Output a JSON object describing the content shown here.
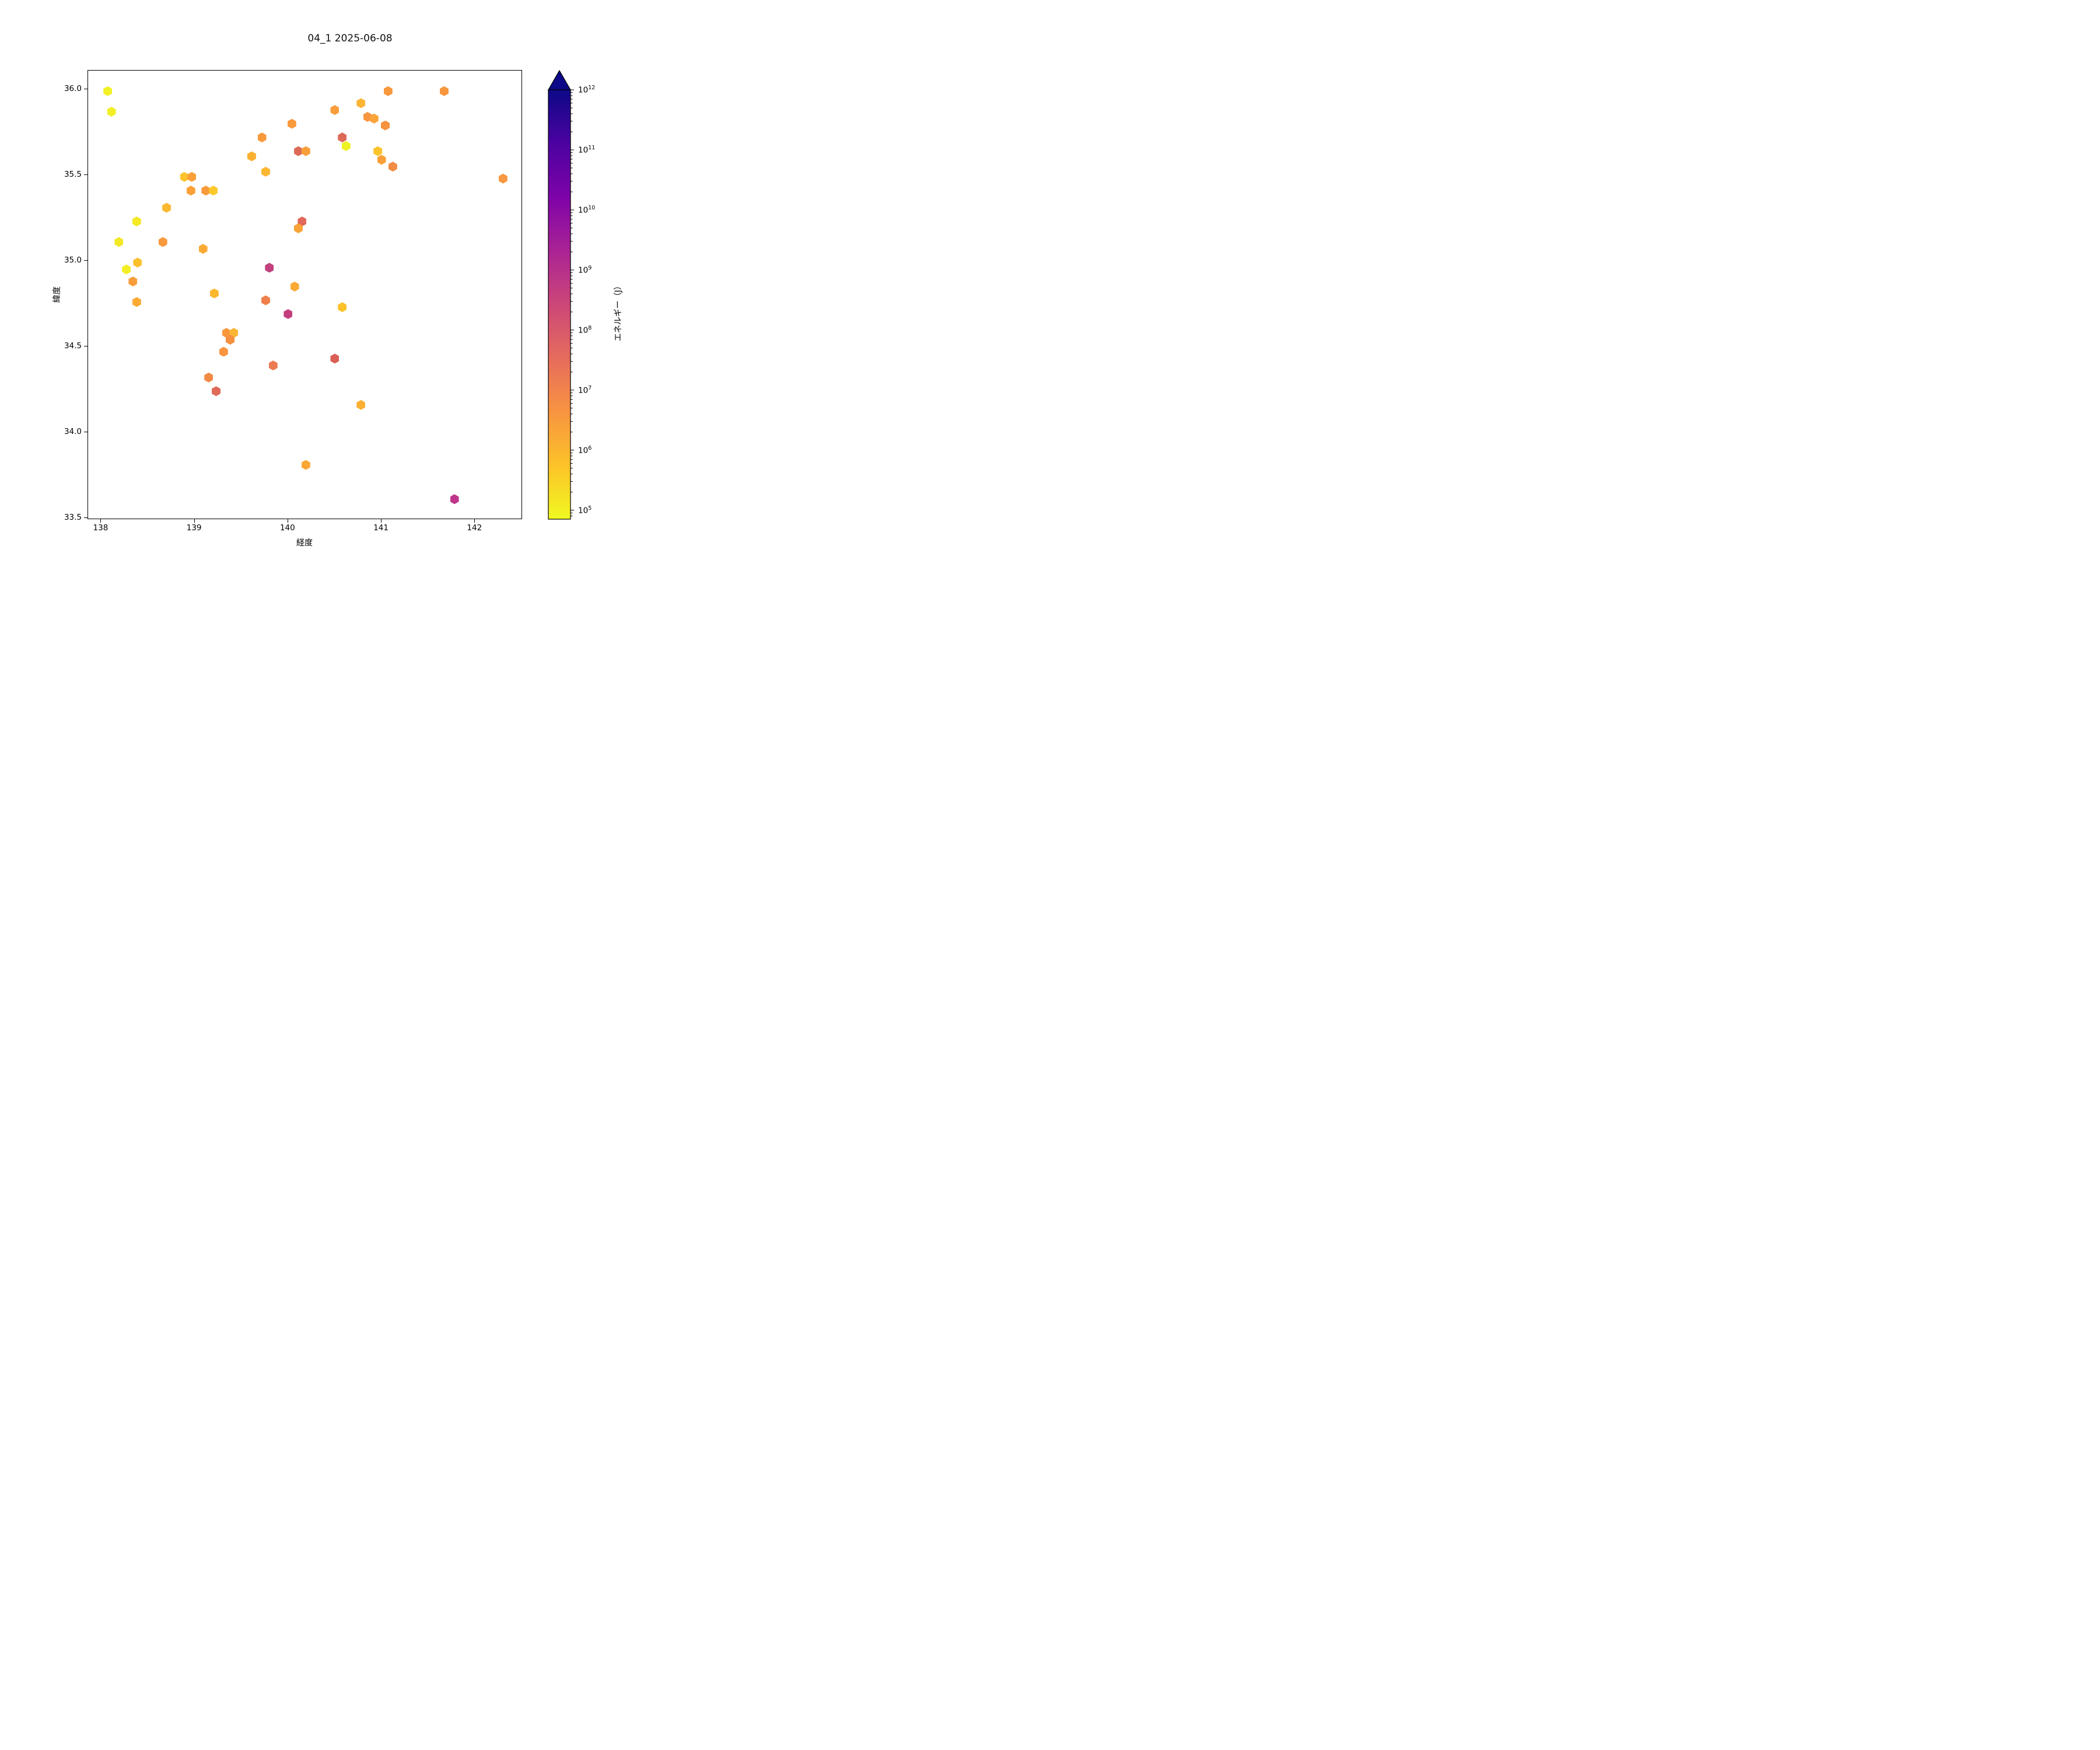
{
  "title": "04_1 2025-06-08",
  "axes": {
    "xlabel": "経度",
    "ylabel": "緯度",
    "x_ticks": [
      138,
      139,
      140,
      141,
      142
    ],
    "y_ticks": [
      "36.0",
      "35.5",
      "35.0",
      "34.5",
      "34.0",
      "33.5"
    ]
  },
  "colorbar": {
    "label": "エネルギー（J）",
    "scale": "log",
    "extend": "max-arrow-top",
    "colormap": "plasma_r",
    "tick_exponents": [
      12,
      11,
      10,
      9,
      8,
      7,
      6,
      5
    ],
    "top_color": "#0d0887",
    "gradient_stops_bottom_to_top": [
      "#f0f921",
      "#fdc328",
      "#f89441",
      "#e66c5c",
      "#cc4778",
      "#aa2395",
      "#7e03a8",
      "#4c02a1",
      "#0d0887"
    ]
  },
  "chart_data": {
    "type": "scatter",
    "marker": "hexagon",
    "title": "04_1 2025-06-08",
    "xlabel": "経度",
    "ylabel": "緯度",
    "xlim": [
      137.86,
      142.51
    ],
    "ylim": [
      33.49,
      36.11
    ],
    "color_encodes": "エネルギー (J), log scale 1e5–1e12, plasma reversed",
    "points": [
      {
        "x": 138.07,
        "y": 35.99,
        "color": "#f2f126",
        "energy_j_est": "1e5"
      },
      {
        "x": 138.11,
        "y": 35.87,
        "color": "#f2ef26",
        "energy_j_est": "1e5"
      },
      {
        "x": 138.89,
        "y": 35.49,
        "color": "#fcc32c",
        "energy_j_est": "6e5"
      },
      {
        "x": 138.97,
        "y": 35.49,
        "color": "#fba038",
        "energy_j_est": "2e6"
      },
      {
        "x": 138.96,
        "y": 35.41,
        "color": "#fba138",
        "energy_j_est": "2e6"
      },
      {
        "x": 139.12,
        "y": 35.41,
        "color": "#f99a3b",
        "energy_j_est": "3e6"
      },
      {
        "x": 139.2,
        "y": 35.41,
        "color": "#fcc92b",
        "energy_j_est": "4e5"
      },
      {
        "x": 138.7,
        "y": 35.31,
        "color": "#fcb830",
        "energy_j_est": "1e6"
      },
      {
        "x": 138.38,
        "y": 35.23,
        "color": "#f4ea25",
        "energy_j_est": "1.5e5"
      },
      {
        "x": 138.19,
        "y": 35.11,
        "color": "#f2e826",
        "energy_j_est": "1.5e5"
      },
      {
        "x": 138.66,
        "y": 35.11,
        "color": "#f9993c",
        "energy_j_est": "3e6"
      },
      {
        "x": 139.09,
        "y": 35.07,
        "color": "#fbaa35",
        "energy_j_est": "1.5e6"
      },
      {
        "x": 138.39,
        "y": 34.99,
        "color": "#fcc02d",
        "energy_j_est": "6e5"
      },
      {
        "x": 138.27,
        "y": 34.95,
        "color": "#f3ee25",
        "energy_j_est": "1.5e5"
      },
      {
        "x": 138.34,
        "y": 34.88,
        "color": "#f99c3b",
        "energy_j_est": "3e6"
      },
      {
        "x": 139.21,
        "y": 34.81,
        "color": "#fcb72f",
        "energy_j_est": "1e6"
      },
      {
        "x": 138.38,
        "y": 34.76,
        "color": "#fbab34",
        "energy_j_est": "1.5e6"
      },
      {
        "x": 139.34,
        "y": 34.58,
        "color": "#f9973d",
        "energy_j_est": "4e6"
      },
      {
        "x": 139.42,
        "y": 34.58,
        "color": "#fcb434",
        "energy_j_est": "1e6"
      },
      {
        "x": 139.38,
        "y": 34.54,
        "color": "#f6903f",
        "energy_j_est": "4e6"
      },
      {
        "x": 139.31,
        "y": 34.47,
        "color": "#f8953e",
        "energy_j_est": "4e6"
      },
      {
        "x": 139.15,
        "y": 34.32,
        "color": "#f28a46",
        "energy_j_est": "1e7"
      },
      {
        "x": 139.23,
        "y": 34.24,
        "color": "#e06a58",
        "energy_j_est": "3e7"
      },
      {
        "x": 139.61,
        "y": 35.61,
        "color": "#fcb032",
        "energy_j_est": "1e6"
      },
      {
        "x": 139.76,
        "y": 35.52,
        "color": "#fcb731",
        "energy_j_est": "1e6"
      },
      {
        "x": 139.72,
        "y": 35.72,
        "color": "#f9993c",
        "energy_j_est": "3e6"
      },
      {
        "x": 140.04,
        "y": 35.8,
        "color": "#f99a3b",
        "energy_j_est": "3e6"
      },
      {
        "x": 140.5,
        "y": 35.88,
        "color": "#f89d3c",
        "energy_j_est": "3e6"
      },
      {
        "x": 140.78,
        "y": 35.92,
        "color": "#fcb434",
        "energy_j_est": "1e6"
      },
      {
        "x": 140.85,
        "y": 35.84,
        "color": "#f89540",
        "energy_j_est": "4e6"
      },
      {
        "x": 140.92,
        "y": 35.83,
        "color": "#fba43a",
        "energy_j_est": "1.5e6"
      },
      {
        "x": 141.04,
        "y": 35.79,
        "color": "#f6913e",
        "energy_j_est": "4e6"
      },
      {
        "x": 140.58,
        "y": 35.72,
        "color": "#dd6a58",
        "energy_j_est": "3.5e7"
      },
      {
        "x": 140.62,
        "y": 35.67,
        "color": "#eff223",
        "energy_j_est": "1e5"
      },
      {
        "x": 140.11,
        "y": 35.64,
        "color": "#dc6b56",
        "energy_j_est": "3.5e7"
      },
      {
        "x": 140.19,
        "y": 35.64,
        "color": "#f99f3a",
        "energy_j_est": "2e6"
      },
      {
        "x": 140.96,
        "y": 35.64,
        "color": "#fcc32c",
        "energy_j_est": "6e5"
      },
      {
        "x": 141.0,
        "y": 35.59,
        "color": "#f9a138",
        "energy_j_est": "2e6"
      },
      {
        "x": 141.12,
        "y": 35.55,
        "color": "#f28c44",
        "energy_j_est": "1e7"
      },
      {
        "x": 141.07,
        "y": 35.99,
        "color": "#f9973d",
        "energy_j_est": "4e6"
      },
      {
        "x": 141.67,
        "y": 35.99,
        "color": "#f8963e",
        "energy_j_est": "4e6"
      },
      {
        "x": 142.3,
        "y": 35.48,
        "color": "#f89840",
        "energy_j_est": "4e6"
      },
      {
        "x": 140.15,
        "y": 35.23,
        "color": "#e0695a",
        "energy_j_est": "3e7"
      },
      {
        "x": 140.11,
        "y": 35.19,
        "color": "#f9a338",
        "energy_j_est": "2e6"
      },
      {
        "x": 139.8,
        "y": 34.96,
        "color": "#c2417f",
        "energy_j_est": "4e8"
      },
      {
        "x": 140.07,
        "y": 34.85,
        "color": "#fbaa36",
        "energy_j_est": "1.5e6"
      },
      {
        "x": 139.76,
        "y": 34.77,
        "color": "#f08049",
        "energy_j_est": "1e7"
      },
      {
        "x": 140.0,
        "y": 34.69,
        "color": "#c43e7d",
        "energy_j_est": "5e8"
      },
      {
        "x": 140.58,
        "y": 34.73,
        "color": "#fcc22c",
        "energy_j_est": "6e5"
      },
      {
        "x": 140.5,
        "y": 34.43,
        "color": "#da5f56",
        "energy_j_est": "4e7"
      },
      {
        "x": 139.84,
        "y": 34.39,
        "color": "#ec7a50",
        "energy_j_est": "1.5e7"
      },
      {
        "x": 140.78,
        "y": 34.16,
        "color": "#fcb032",
        "energy_j_est": "1e6"
      },
      {
        "x": 140.19,
        "y": 33.81,
        "color": "#fba736",
        "energy_j_est": "1.5e6"
      },
      {
        "x": 141.78,
        "y": 33.61,
        "color": "#c0368b",
        "energy_j_est": "8e8"
      }
    ]
  }
}
